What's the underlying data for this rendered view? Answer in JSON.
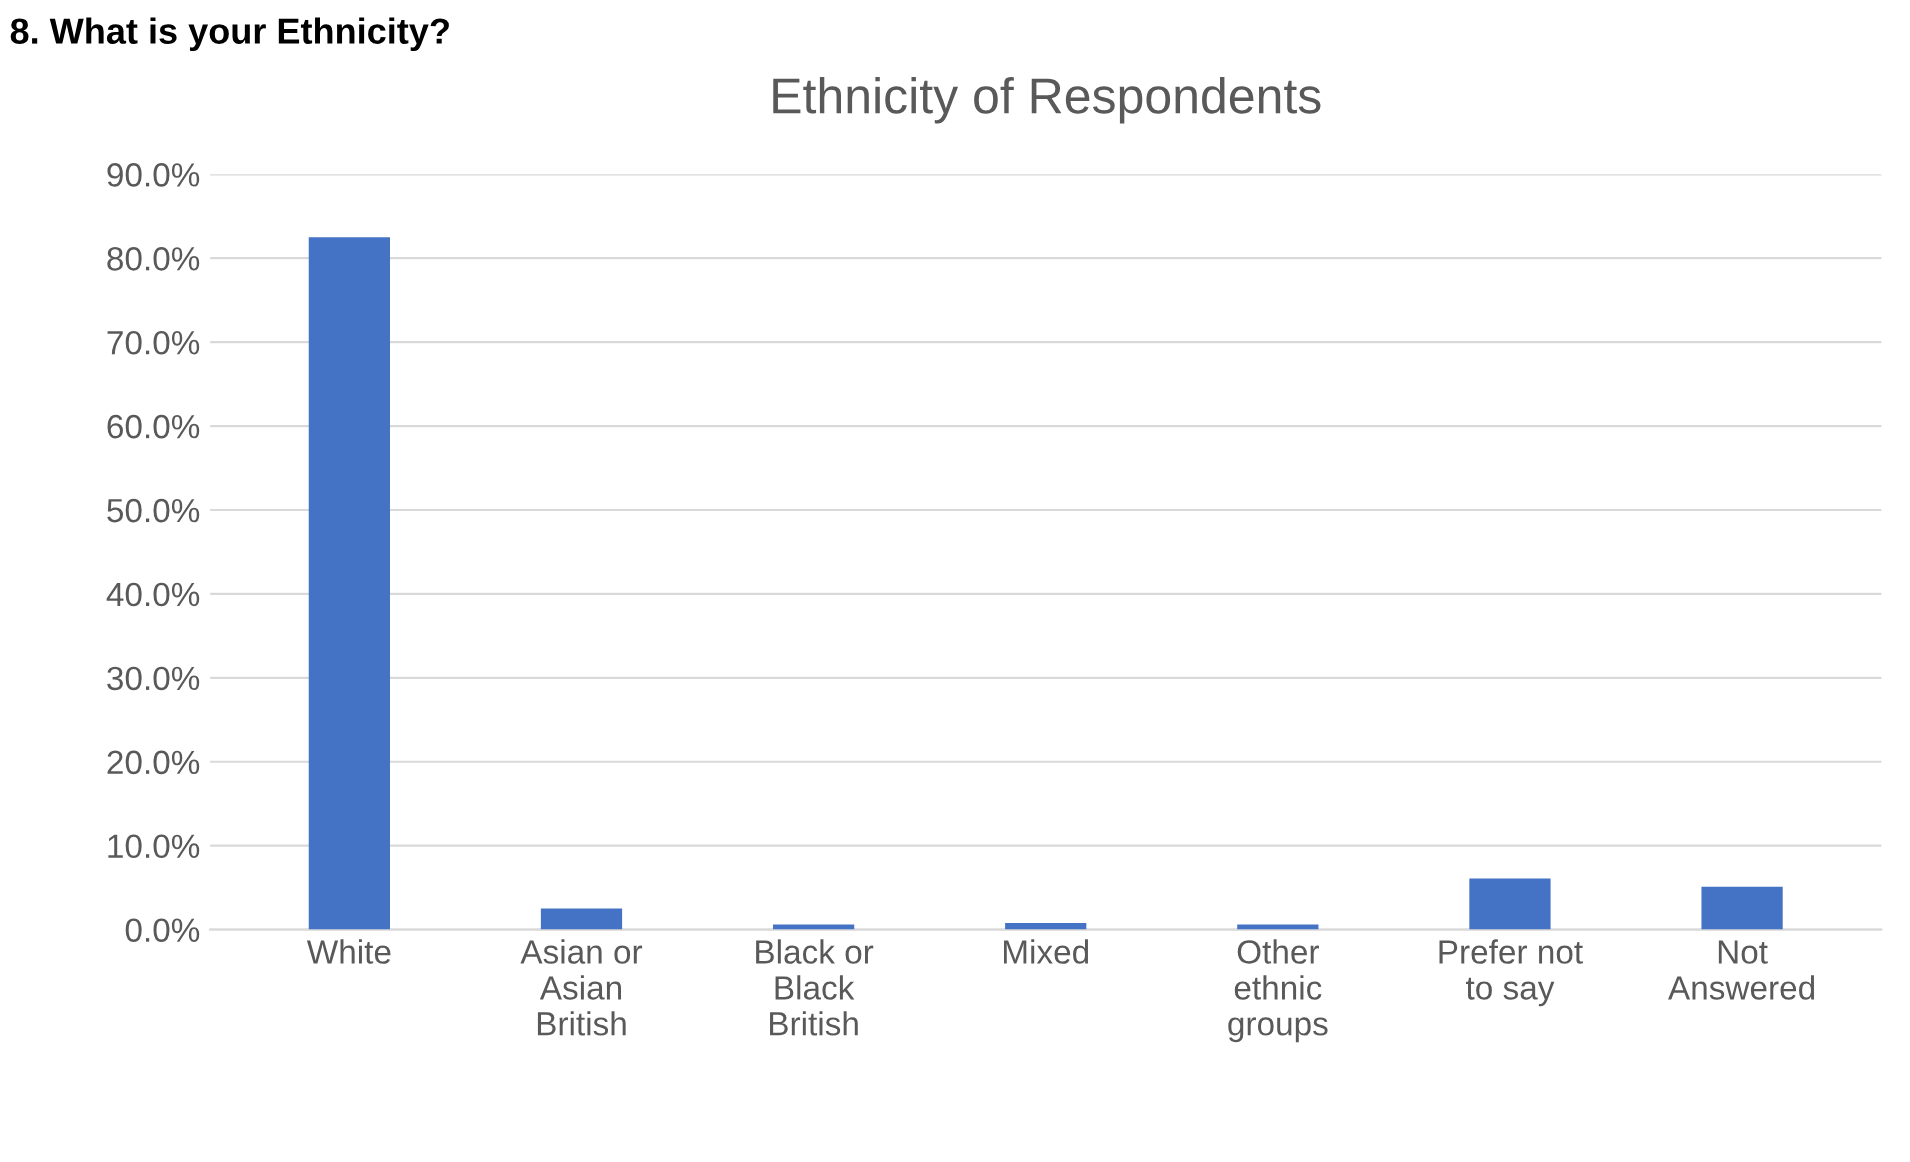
{
  "chart_data": {
    "type": "bar",
    "title": "Ethnicity of Respondents",
    "annotations": [
      "8. What is your Ethnicity?"
    ],
    "categories": [
      "White",
      "Asian or\nAsian\nBritish",
      "Black or\nBlack\nBritish",
      "Mixed",
      "Other\nethnic\ngroups",
      "Prefer not\nto say",
      "Not\nAnswered"
    ],
    "values": [
      82.5,
      2.5,
      0.6,
      0.8,
      0.6,
      6.1,
      5.1
    ],
    "color": "#4472c4",
    "ylim": [
      0,
      90
    ],
    "yticks": [
      {
        "value": 0,
        "label": "0.0%"
      },
      {
        "value": 10,
        "label": "10.0%"
      },
      {
        "value": 20,
        "label": "20.0%"
      },
      {
        "value": 30,
        "label": "30.0%"
      },
      {
        "value": 40,
        "label": "40.0%"
      },
      {
        "value": 50,
        "label": "50.0%"
      },
      {
        "value": 60,
        "label": "60.0%"
      },
      {
        "value": 70,
        "label": "70.0%"
      },
      {
        "value": 80,
        "label": "80.0%"
      },
      {
        "value": 90,
        "label": "90.0%"
      }
    ],
    "grid": "y"
  }
}
